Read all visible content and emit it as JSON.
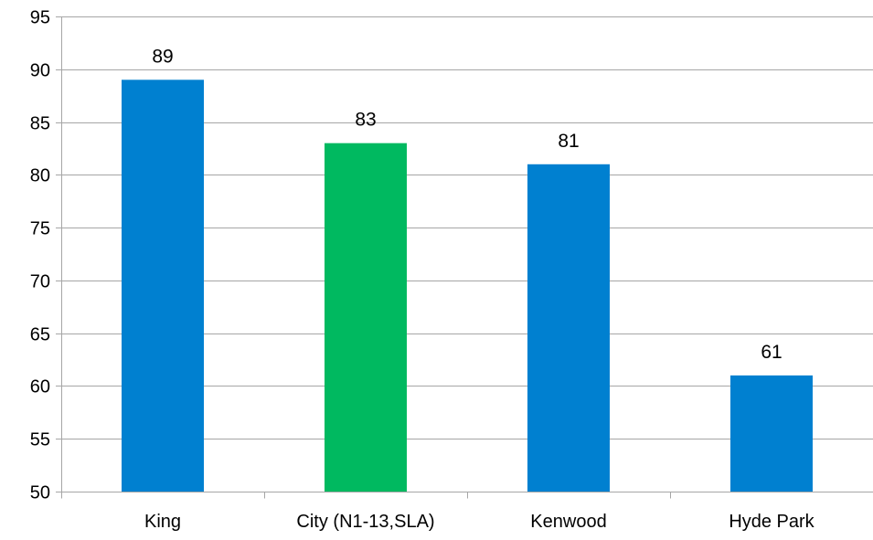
{
  "chart_data": {
    "type": "bar",
    "categories": [
      "King",
      "City (N1-13,SLA)",
      "Kenwood",
      "Hyde Park"
    ],
    "values": [
      89,
      83,
      81,
      61
    ],
    "data_labels": [
      "89",
      "83",
      "81",
      "61"
    ],
    "bar_colors": [
      "#0080D0",
      "#00B960",
      "#0080D0",
      "#0080D0"
    ],
    "ylim": [
      50,
      95
    ],
    "yticks": [
      50,
      55,
      60,
      65,
      70,
      75,
      80,
      85,
      90,
      95
    ],
    "ytick_labels": [
      "50",
      "55",
      "60",
      "65",
      "70",
      "75",
      "80",
      "85",
      "90",
      "95"
    ],
    "grid": true,
    "grid_color": "#a6a6a6",
    "title": "",
    "xlabel": "",
    "ylabel": ""
  }
}
